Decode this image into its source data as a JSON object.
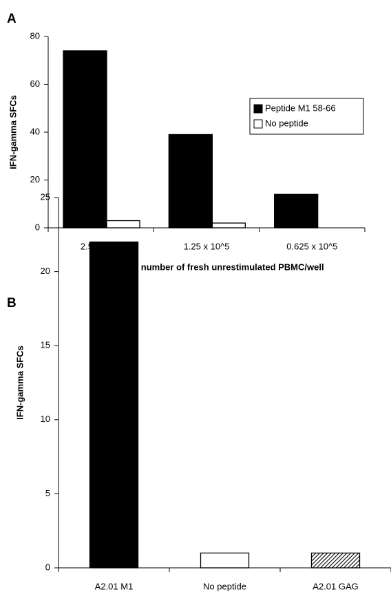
{
  "chart_data": [
    {
      "type": "bar",
      "panel": "A",
      "y_label": "IFN-gamma SFCs",
      "x_label": "Input number of fresh unrestimulated PBMC/well",
      "categories": [
        "2.5  x  10^5",
        "1.25  x  10^5",
        "0.625  x  10^5"
      ],
      "series": [
        {
          "name": "Peptide M1 58-66",
          "color": "#000000",
          "values": [
            74,
            39,
            14
          ]
        },
        {
          "name": "No peptide",
          "color": "#ffffff",
          "values": [
            3,
            2,
            0
          ]
        }
      ],
      "ylim": [
        0,
        80
      ],
      "yticks": [
        0,
        20,
        40,
        60,
        80
      ],
      "legend": "upper right"
    },
    {
      "type": "bar",
      "panel": "B",
      "y_label": "IFN-gamma SFCs",
      "categories": [
        "A2.01 M1",
        "No peptide",
        "A2.01 GAG"
      ],
      "values": [
        22,
        1,
        1
      ],
      "colors": [
        "#000000",
        "#ffffff",
        "hatch"
      ],
      "ylim": [
        0,
        25
      ],
      "yticks": [
        0,
        5,
        10,
        15,
        20,
        25
      ]
    }
  ]
}
